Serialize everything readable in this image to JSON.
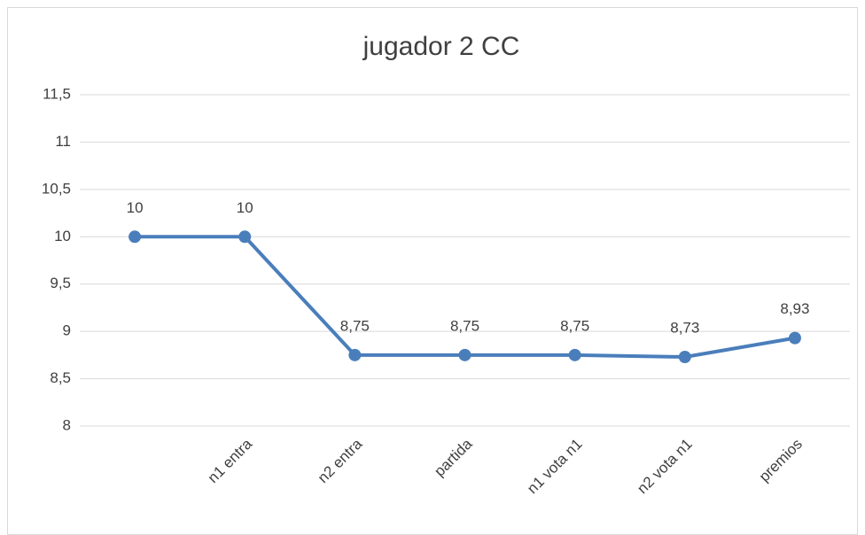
{
  "chart_data": {
    "type": "line",
    "title": "jugador 2 CC",
    "categories": [
      null,
      "n1 entra",
      "n2 entra",
      "partida",
      "n1 vota n1",
      "n2 vota n1",
      "premios"
    ],
    "values": [
      10,
      10,
      8.75,
      8.75,
      8.75,
      8.73,
      8.93
    ],
    "value_labels": [
      "10",
      "10",
      "8,75",
      "8,75",
      "8,75",
      "8,73",
      "8,93"
    ],
    "color": "#4a7ebb",
    "ylim": [
      8,
      11.5
    ],
    "yticks": [
      8,
      {
        "value": 8.5,
        "label": "8,5"
      },
      9,
      {
        "value": 9.5,
        "label": "9,5"
      },
      10,
      {
        "value": 10.5,
        "label": "10,5"
      },
      11,
      {
        "value": 11.5,
        "label": "11,5"
      }
    ],
    "grid": true
  }
}
